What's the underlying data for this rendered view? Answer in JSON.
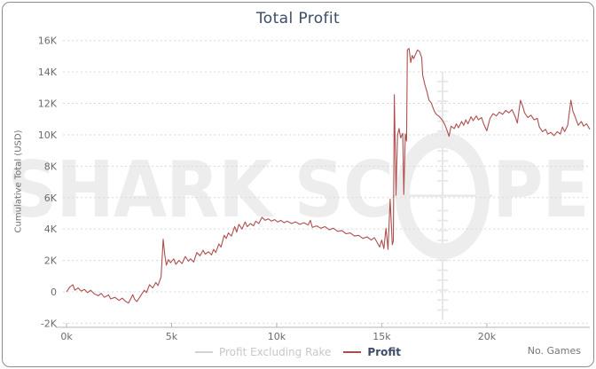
{
  "title": "Total Profit",
  "watermark": {
    "text_left": "SHARK SC",
    "text_right": "PE"
  },
  "x_axis_title": "No. Games",
  "y_axis_label": "Cumulative Total (USD)",
  "legend": {
    "items": [
      {
        "label": "Profit Excluding Rake",
        "line_color": "#d3d3d3",
        "active": false
      },
      {
        "label": "Profit",
        "line_color": "#a94c4d",
        "active": true
      }
    ]
  },
  "colors": {
    "profit_line": "#ae4f4f",
    "title_text": "#3b4c66",
    "tick_text": "#6b6b6b",
    "gridline": "#d9d9d9",
    "axis_line": "#b5b5b5",
    "watermark": "#ededed",
    "panel_border": "#8d8d8d"
  },
  "chart_data": {
    "type": "line",
    "title": "Total Profit",
    "xlabel": "No. Games",
    "ylabel": "Cumulative Total (USD)",
    "x_unit": "games",
    "y_unit": "USD",
    "xlim": [
      -170,
      24900
    ],
    "ylim": [
      -2260,
      16380
    ],
    "grid": "horizontal dashed",
    "legend_position": "bottom center",
    "x_ticks": [
      {
        "v": 0,
        "label": "0k"
      },
      {
        "v": 5000,
        "label": "5k"
      },
      {
        "v": 10000,
        "label": "10k"
      },
      {
        "v": 15000,
        "label": "15k"
      },
      {
        "v": 20000,
        "label": "20k"
      }
    ],
    "y_ticks": [
      {
        "v": 16000,
        "label": "16K"
      },
      {
        "v": 14000,
        "label": "14K"
      },
      {
        "v": 12000,
        "label": "12K"
      },
      {
        "v": 10000,
        "label": "10K"
      },
      {
        "v": 8000,
        "label": "8K"
      },
      {
        "v": 6000,
        "label": "6K"
      },
      {
        "v": 4000,
        "label": "4K"
      },
      {
        "v": 2000,
        "label": "2K"
      },
      {
        "v": 0,
        "label": "0"
      },
      {
        "v": -2000,
        "label": "-2K"
      }
    ],
    "series": [
      {
        "name": "Profit",
        "color": "#ae4f4f",
        "visible": true,
        "points": [
          [
            0,
            0
          ],
          [
            150,
            300
          ],
          [
            300,
            450
          ],
          [
            400,
            100
          ],
          [
            550,
            250
          ],
          [
            700,
            50
          ],
          [
            850,
            150
          ],
          [
            1000,
            -50
          ],
          [
            1150,
            100
          ],
          [
            1300,
            -100
          ],
          [
            1500,
            -250
          ],
          [
            1650,
            -100
          ],
          [
            1800,
            -350
          ],
          [
            2000,
            -200
          ],
          [
            2100,
            -450
          ],
          [
            2300,
            -350
          ],
          [
            2500,
            -550
          ],
          [
            2650,
            -400
          ],
          [
            2800,
            -600
          ],
          [
            2950,
            -720
          ],
          [
            3050,
            -450
          ],
          [
            3150,
            -180
          ],
          [
            3250,
            -500
          ],
          [
            3350,
            -620
          ],
          [
            3500,
            -300
          ],
          [
            3600,
            -100
          ],
          [
            3700,
            100
          ],
          [
            3800,
            -50
          ],
          [
            3950,
            450
          ],
          [
            4100,
            250
          ],
          [
            4250,
            600
          ],
          [
            4350,
            400
          ],
          [
            4500,
            950
          ],
          [
            4600,
            3350
          ],
          [
            4680,
            2300
          ],
          [
            4750,
            1700
          ],
          [
            4850,
            2050
          ],
          [
            4950,
            1850
          ],
          [
            5100,
            2100
          ],
          [
            5200,
            1750
          ],
          [
            5350,
            2000
          ],
          [
            5500,
            1800
          ],
          [
            5650,
            2250
          ],
          [
            5800,
            1950
          ],
          [
            5900,
            2100
          ],
          [
            6050,
            1900
          ],
          [
            6200,
            2500
          ],
          [
            6350,
            2300
          ],
          [
            6500,
            2650
          ],
          [
            6600,
            2400
          ],
          [
            6750,
            2550
          ],
          [
            6900,
            2350
          ],
          [
            7000,
            2700
          ],
          [
            7100,
            2500
          ],
          [
            7250,
            3050
          ],
          [
            7350,
            2850
          ],
          [
            7500,
            3600
          ],
          [
            7600,
            3400
          ],
          [
            7700,
            3750
          ],
          [
            7850,
            3550
          ],
          [
            8000,
            4150
          ],
          [
            8100,
            3800
          ],
          [
            8200,
            4300
          ],
          [
            8350,
            4000
          ],
          [
            8500,
            4450
          ],
          [
            8600,
            4150
          ],
          [
            8750,
            4350
          ],
          [
            8900,
            4200
          ],
          [
            9000,
            4500
          ],
          [
            9150,
            4350
          ],
          [
            9300,
            4750
          ],
          [
            9450,
            4550
          ],
          [
            9600,
            4650
          ],
          [
            9750,
            4500
          ],
          [
            9900,
            4600
          ],
          [
            10050,
            4450
          ],
          [
            10200,
            4550
          ],
          [
            10350,
            4400
          ],
          [
            10500,
            4500
          ],
          [
            10700,
            4350
          ],
          [
            10900,
            4450
          ],
          [
            11100,
            4300
          ],
          [
            11300,
            4400
          ],
          [
            11500,
            4250
          ],
          [
            11600,
            4550
          ],
          [
            11700,
            4100
          ],
          [
            11900,
            4200
          ],
          [
            12100,
            4050
          ],
          [
            12300,
            4150
          ],
          [
            12500,
            3950
          ],
          [
            12700,
            4050
          ],
          [
            12900,
            3850
          ],
          [
            13100,
            3900
          ],
          [
            13300,
            3700
          ],
          [
            13500,
            3750
          ],
          [
            13700,
            3550
          ],
          [
            13900,
            3600
          ],
          [
            14100,
            3400
          ],
          [
            14300,
            3500
          ],
          [
            14500,
            3300
          ],
          [
            14650,
            3450
          ],
          [
            14800,
            3100
          ],
          [
            14900,
            2850
          ],
          [
            15000,
            3300
          ],
          [
            15100,
            2750
          ],
          [
            15200,
            4050
          ],
          [
            15300,
            2700
          ],
          [
            15400,
            5900
          ],
          [
            15500,
            3000
          ],
          [
            15550,
            3250
          ],
          [
            15600,
            12550
          ],
          [
            15680,
            6150
          ],
          [
            15750,
            9950
          ],
          [
            15820,
            10400
          ],
          [
            15900,
            9800
          ],
          [
            16000,
            10100
          ],
          [
            16050,
            6200
          ],
          [
            16120,
            10050
          ],
          [
            16180,
            9600
          ],
          [
            16220,
            15400
          ],
          [
            16300,
            15500
          ],
          [
            16380,
            14600
          ],
          [
            16450,
            15050
          ],
          [
            16520,
            14850
          ],
          [
            16600,
            15100
          ],
          [
            16700,
            15400
          ],
          [
            16800,
            15300
          ],
          [
            16900,
            14900
          ],
          [
            16950,
            13800
          ],
          [
            17050,
            13200
          ],
          [
            17150,
            12750
          ],
          [
            17250,
            12200
          ],
          [
            17350,
            12050
          ],
          [
            17500,
            11500
          ],
          [
            17600,
            11300
          ],
          [
            17750,
            11150
          ],
          [
            17900,
            10900
          ],
          [
            18000,
            10650
          ],
          [
            18100,
            10300
          ],
          [
            18200,
            9900
          ],
          [
            18300,
            10550
          ],
          [
            18450,
            10400
          ],
          [
            18550,
            10700
          ],
          [
            18650,
            10450
          ],
          [
            18800,
            10850
          ],
          [
            18900,
            10600
          ],
          [
            19000,
            10950
          ],
          [
            19100,
            10700
          ],
          [
            19250,
            11150
          ],
          [
            19350,
            10900
          ],
          [
            19500,
            11200
          ],
          [
            19600,
            10950
          ],
          [
            19750,
            11100
          ],
          [
            19850,
            10700
          ],
          [
            20000,
            10250
          ],
          [
            20150,
            11050
          ],
          [
            20300,
            11350
          ],
          [
            20450,
            11200
          ],
          [
            20600,
            11450
          ],
          [
            20750,
            11300
          ],
          [
            20900,
            11550
          ],
          [
            21050,
            11400
          ],
          [
            21200,
            11600
          ],
          [
            21350,
            11150
          ],
          [
            21450,
            10750
          ],
          [
            21600,
            12200
          ],
          [
            21700,
            11850
          ],
          [
            21800,
            11400
          ],
          [
            21950,
            11100
          ],
          [
            22100,
            11250
          ],
          [
            22250,
            10950
          ],
          [
            22400,
            11050
          ],
          [
            22500,
            10500
          ],
          [
            22650,
            10200
          ],
          [
            22800,
            10350
          ],
          [
            22900,
            10050
          ],
          [
            23050,
            10150
          ],
          [
            23200,
            9950
          ],
          [
            23350,
            10200
          ],
          [
            23500,
            10050
          ],
          [
            23600,
            10500
          ],
          [
            23700,
            10200
          ],
          [
            23850,
            10600
          ],
          [
            24000,
            12200
          ],
          [
            24100,
            11500
          ],
          [
            24200,
            11150
          ],
          [
            24350,
            10600
          ],
          [
            24500,
            10850
          ],
          [
            24600,
            10550
          ],
          [
            24750,
            10700
          ],
          [
            24900,
            10350
          ]
        ]
      },
      {
        "name": "Profit Excluding Rake",
        "color": "#d3d3d3",
        "visible": false,
        "points": []
      }
    ]
  }
}
